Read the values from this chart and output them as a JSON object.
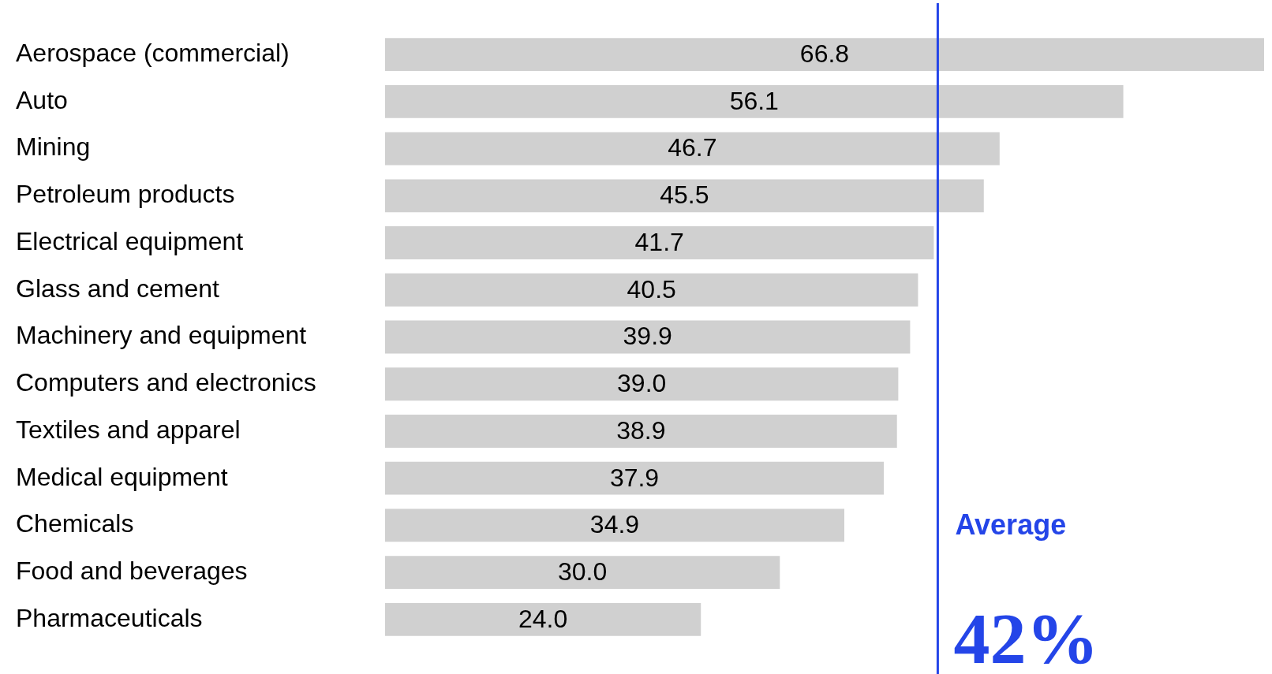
{
  "chart_data": {
    "type": "bar",
    "orientation": "horizontal",
    "categories": [
      "Aerospace (commercial)",
      "Auto",
      "Mining",
      "Petroleum products",
      "Electrical equipment",
      "Glass and cement",
      "Machinery and equipment",
      "Computers and electronics",
      "Textiles and apparel",
      "Medical equipment",
      "Chemicals",
      "Food and beverages",
      "Pharmaceuticals"
    ],
    "values": [
      66.8,
      56.1,
      46.7,
      45.5,
      41.7,
      40.5,
      39.9,
      39.0,
      38.9,
      37.9,
      34.9,
      30.0,
      24.0
    ],
    "color": "#d0d0d0",
    "value_labels": [
      "66.8",
      "56.1",
      "46.7",
      "45.5",
      "41.7",
      "40.5",
      "39.9",
      "39.0",
      "38.9",
      "37.9",
      "34.9",
      "30.0",
      "24.0"
    ],
    "tick_labels": "y",
    "ref_lines": [
      {
        "axis": "x",
        "value": 42,
        "label": "Average",
        "color": "#2445e8"
      }
    ],
    "annotations": [
      {
        "text": "42%",
        "x": 42
      }
    ]
  }
}
